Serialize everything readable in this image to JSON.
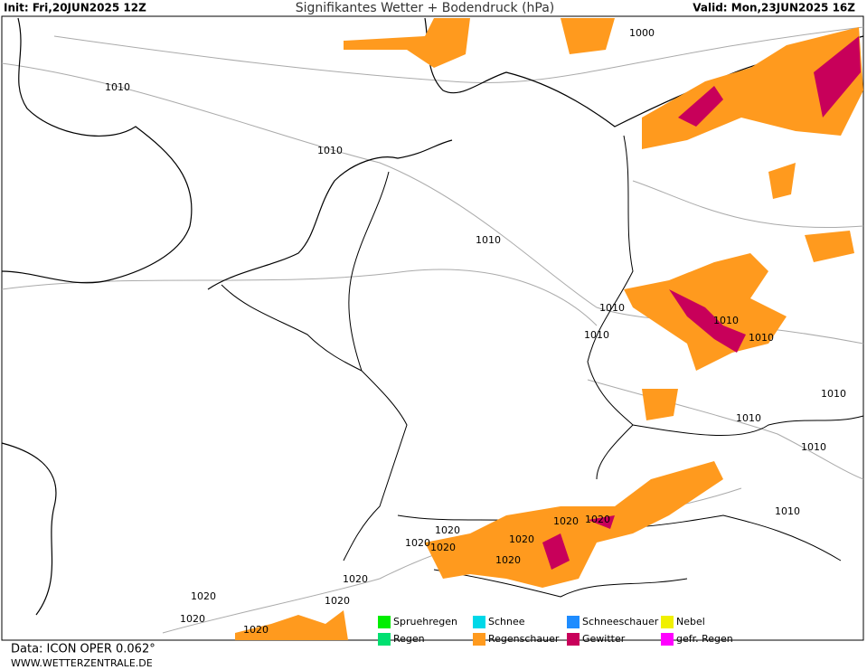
{
  "header": {
    "init": "Init: Fri,20JUN2025 12Z",
    "title": "Signifikantes Wetter +  Bodendruck (hPa)",
    "valid": "Valid: Mon,23JUN2025 16Z"
  },
  "isobar_labels": [
    "1000",
    "1010",
    "1010",
    "1010",
    "1010",
    "1010",
    "1010",
    "1010",
    "1010",
    "1010",
    "1010",
    "1010",
    "1020",
    "1020",
    "1020",
    "1020",
    "1020",
    "1020",
    "1020",
    "1020",
    "1020",
    "1020",
    "1020",
    "1020"
  ],
  "legend": [
    {
      "name": "Spruehregen",
      "color": "#00ee00"
    },
    {
      "name": "Schnee",
      "color": "#00d8e8"
    },
    {
      "name": "Schneeschauer",
      "color": "#1e8cff"
    },
    {
      "name": "Nebel",
      "color": "#f0f000"
    },
    {
      "name": "Regen",
      "color": "#00e070"
    },
    {
      "name": "Regenschauer",
      "color": "#ff9a1e"
    },
    {
      "name": "Gewitter",
      "color": "#c8005a"
    },
    {
      "name": "gefr. Regen",
      "color": "#ff00ff"
    }
  ],
  "footer": {
    "data": "Data: ICON OPER 0.062°",
    "site": "WWW.WETTERZENTRALE.DE"
  }
}
